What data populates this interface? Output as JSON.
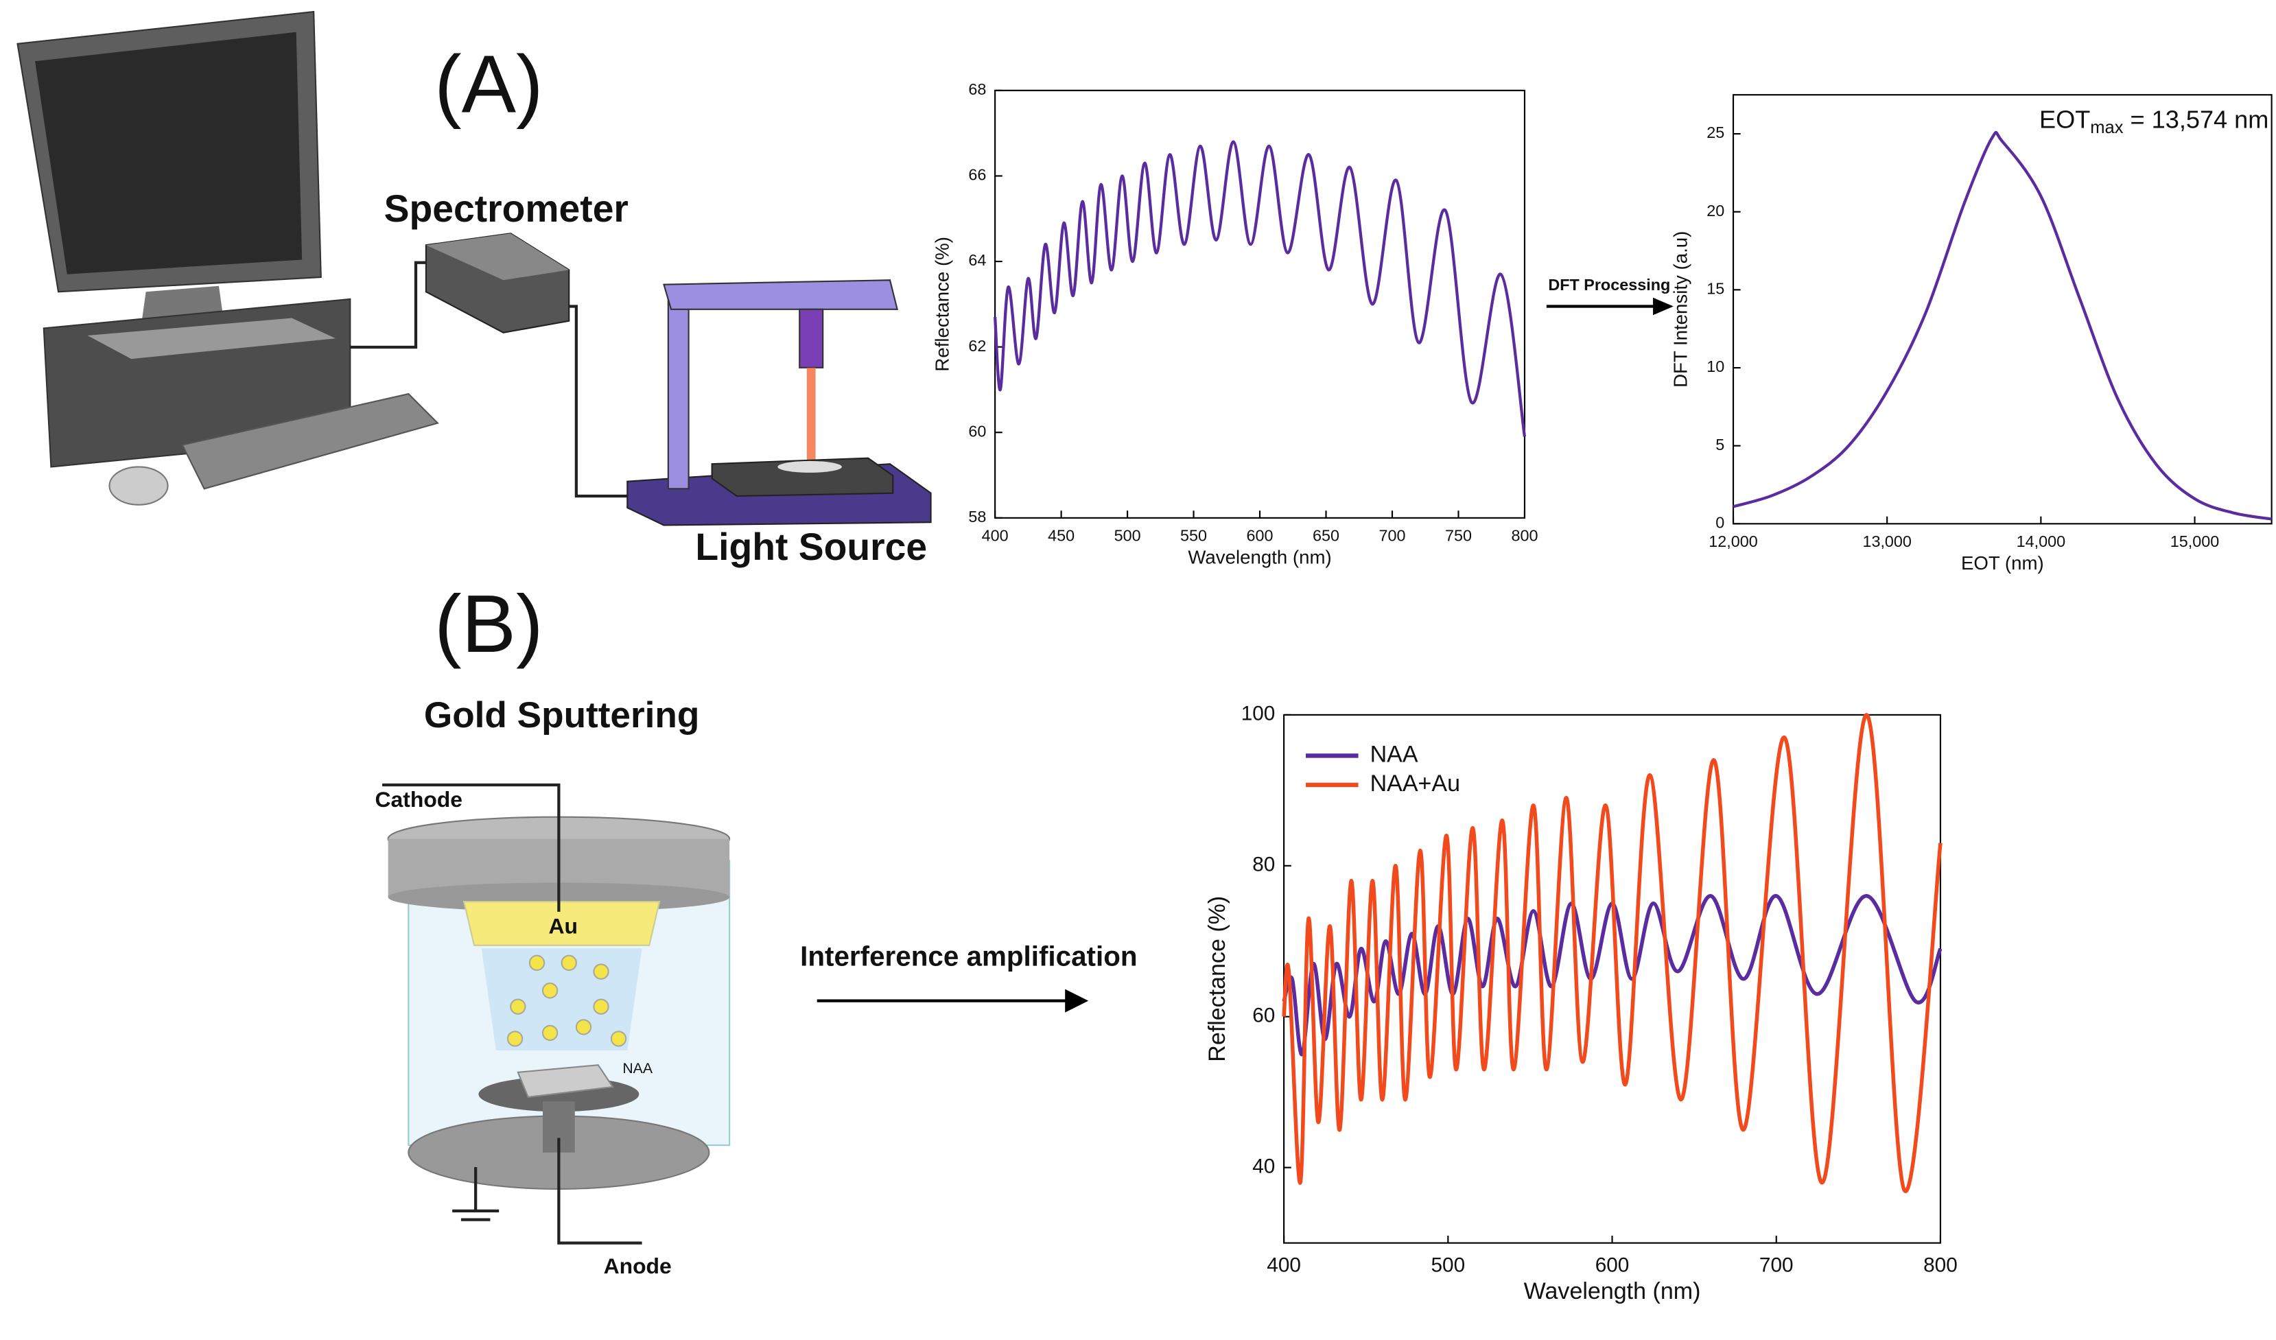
{
  "diagram": {
    "label_a": "(A)",
    "label_b": "(B)",
    "spectrometer": "Spectrometer",
    "light_source": "Light Source",
    "gold_sputtering": "Gold Sputtering",
    "cathode": "Cathode",
    "au": "Au",
    "naa": "NAA",
    "anode": "Anode",
    "interference": "Interference amplification",
    "dft": "DFT Processing"
  },
  "chart_data": [
    {
      "type": "line",
      "xlabel": "Wavelength (nm)",
      "ylabel": "Reflectance (%)",
      "xlim": [
        400,
        800
      ],
      "xticks": [
        400,
        450,
        500,
        550,
        600,
        650,
        700,
        750,
        800
      ],
      "ylim": [
        58,
        68
      ],
      "yticks": [
        58,
        60,
        62,
        64,
        66,
        68
      ],
      "grid": false,
      "series": [
        {
          "color": "#5a2ca0",
          "x": [
            400,
            404,
            410,
            418,
            425,
            431,
            438,
            445,
            452,
            459,
            466,
            473,
            480,
            488,
            496,
            504,
            513,
            522,
            532,
            543,
            555,
            567,
            580,
            593,
            607,
            621,
            637,
            652,
            668,
            685,
            703,
            720,
            740,
            760,
            782,
            800
          ],
          "values": [
            62.7,
            61.0,
            63.4,
            61.6,
            63.6,
            62.2,
            64.4,
            62.8,
            64.9,
            63.2,
            65.4,
            63.5,
            65.8,
            63.8,
            66.0,
            64.0,
            66.3,
            64.2,
            66.5,
            64.4,
            66.7,
            64.5,
            66.8,
            64.4,
            66.7,
            64.2,
            66.5,
            63.8,
            66.2,
            63.0,
            65.9,
            62.1,
            65.2,
            60.7,
            63.7,
            59.9
          ]
        }
      ]
    },
    {
      "type": "line",
      "xlabel": "EOT (nm)",
      "ylabel": "DFT Intensity (a.u)",
      "annotation": {
        "text": "EOT",
        "sub": "max",
        "rest": " = 13,574 nm"
      },
      "xlim": [
        12000,
        15500
      ],
      "xticks": [
        {
          "value": 12000,
          "label": "12,000"
        },
        {
          "value": 13000,
          "label": "13,000"
        },
        {
          "value": 14000,
          "label": "14,000"
        },
        {
          "value": 15000,
          "label": "15,000"
        }
      ],
      "ylim": [
        0,
        27.5
      ],
      "yticks": [
        0,
        5,
        10,
        15,
        20,
        25
      ],
      "grid": false,
      "series": [
        {
          "color": "#5a2ca0",
          "x": [
            12000,
            12250,
            12500,
            12750,
            13000,
            13250,
            13500,
            13680,
            13750,
            14000,
            14250,
            14500,
            14750,
            15000,
            15250,
            15500
          ],
          "values": [
            1.1,
            1.8,
            3.0,
            5.0,
            8.5,
            13.5,
            20.5,
            24.7,
            24.5,
            21.0,
            14.5,
            8.0,
            3.8,
            1.6,
            0.7,
            0.3
          ]
        }
      ]
    },
    {
      "type": "line",
      "xlabel": "Wavelength (nm)",
      "ylabel": "Reflectance (%)",
      "xlim": [
        400,
        800
      ],
      "xticks": [
        400,
        500,
        600,
        700,
        800
      ],
      "ylim": [
        30,
        100
      ],
      "yticks": [
        40,
        60,
        80,
        100
      ],
      "grid": false,
      "legend": "upper left",
      "series": [
        {
          "name": "NAA",
          "color": "#5a2ca0",
          "x": [
            400,
            405,
            411,
            418,
            425,
            432,
            440,
            447,
            455,
            462,
            470,
            478,
            486,
            494,
            503,
            512,
            521,
            530,
            541,
            552,
            563,
            575,
            587,
            600,
            612,
            625,
            640,
            660,
            680,
            700,
            725,
            755,
            785,
            800
          ],
          "values": [
            62,
            65,
            55,
            67,
            57,
            67,
            60,
            69,
            62,
            70,
            63,
            71,
            63,
            72,
            63,
            73,
            64,
            73,
            64,
            74,
            64,
            75,
            65,
            75,
            65,
            75,
            66,
            76,
            65,
            76,
            63,
            76,
            62,
            69
          ]
        },
        {
          "name": "NAA+Au",
          "color": "#f2491d",
          "x": [
            400,
            403,
            410,
            415,
            421,
            428,
            434,
            441,
            447,
            454,
            460,
            468,
            474,
            483,
            489,
            499,
            505,
            515,
            522,
            533,
            540,
            552,
            560,
            572,
            582,
            596,
            608,
            623,
            642,
            662,
            680,
            705,
            728,
            755,
            778,
            800
          ],
          "values": [
            60,
            66,
            38,
            73,
            46,
            72,
            45,
            78,
            49,
            78,
            49,
            80,
            49,
            82,
            52,
            84,
            53,
            85,
            53,
            86,
            53,
            88,
            53,
            89,
            54,
            88,
            51,
            92,
            49,
            94,
            45,
            97,
            38,
            100,
            37,
            83
          ]
        }
      ]
    }
  ]
}
